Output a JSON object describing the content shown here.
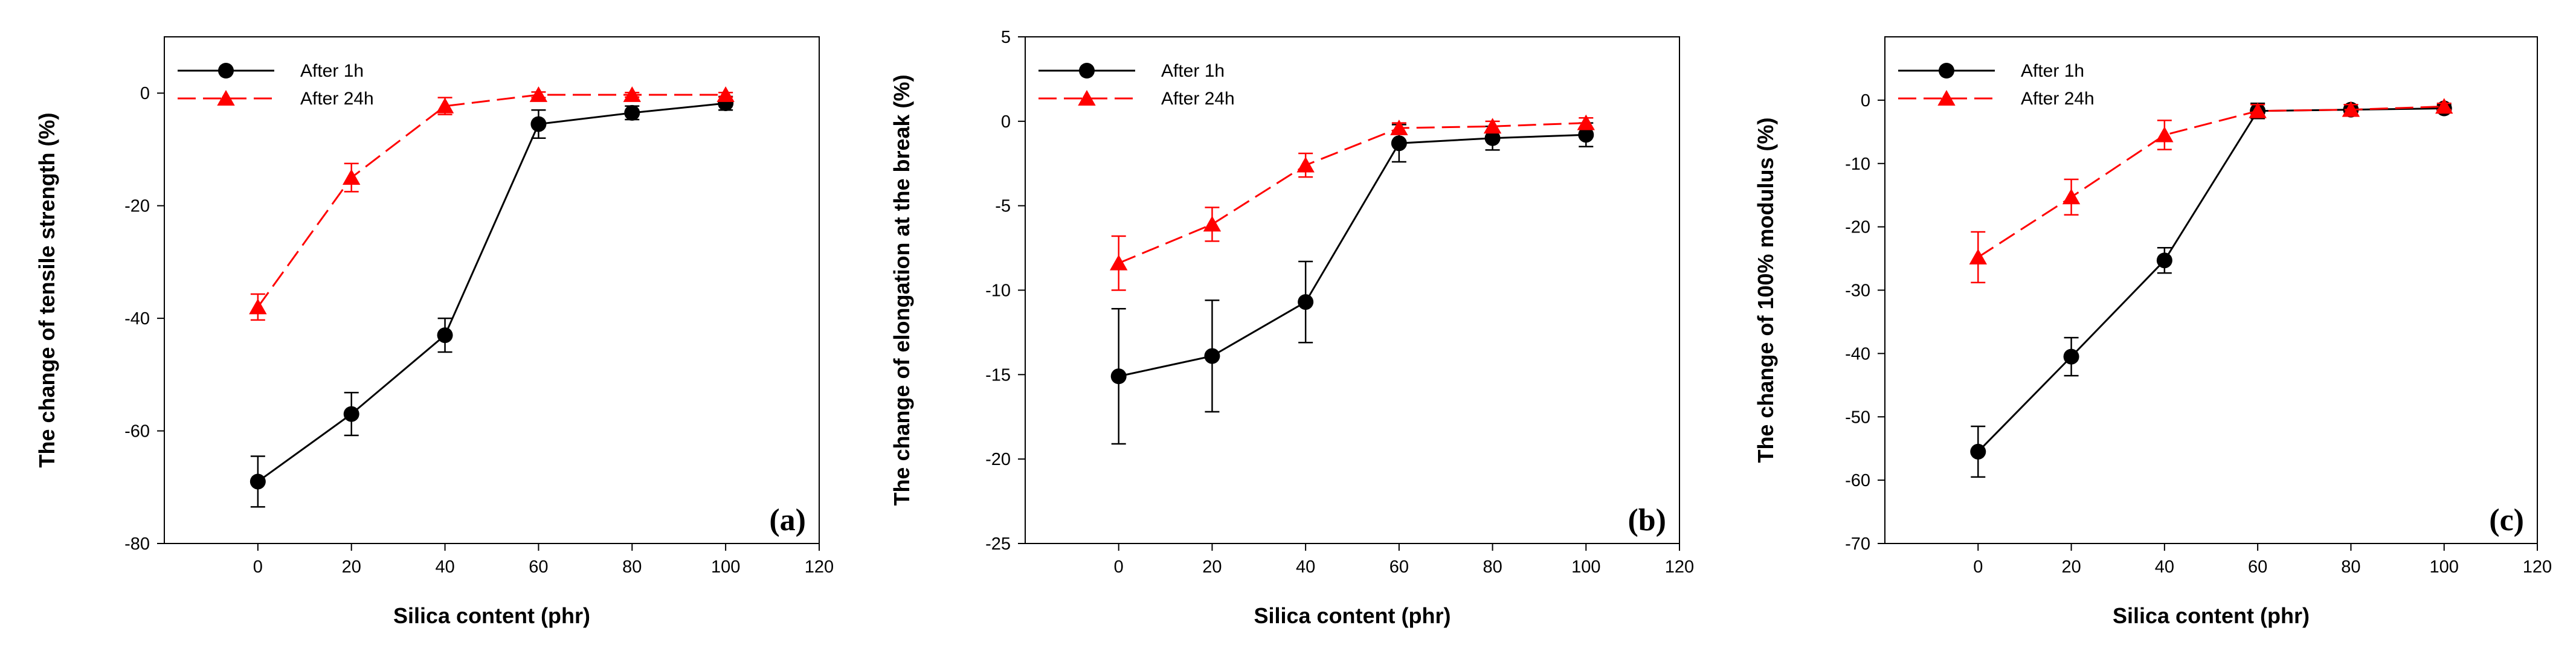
{
  "colors": {
    "after_1h": "#000000",
    "after_24h": "#ff0000"
  },
  "chart_data": [
    {
      "type": "line",
      "panel_label": "(a)",
      "xlabel": "Silica content (phr)",
      "ylabel": "The change of tensile strength (%)",
      "xlim": [
        -20,
        120
      ],
      "ylim": [
        -80,
        10
      ],
      "xticks": [
        0,
        20,
        40,
        60,
        80,
        100,
        120
      ],
      "yticks": [
        -80,
        -60,
        -40,
        -20,
        0
      ],
      "legend_position": "top-left",
      "x": [
        0,
        20,
        40,
        60,
        80,
        100
      ],
      "series": [
        {
          "name": "After 1h",
          "values": [
            -69,
            -57,
            -43,
            -5.5,
            -3.5,
            -1.8
          ],
          "errors": [
            4.5,
            3.8,
            3.0,
            2.5,
            1.2,
            1.2
          ]
        },
        {
          "name": "After 24h",
          "values": [
            -38,
            -15,
            -2.3,
            -0.3,
            -0.3,
            -0.3
          ],
          "errors": [
            2.3,
            2.5,
            1.5,
            0.5,
            0.4,
            0.4
          ]
        }
      ]
    },
    {
      "type": "line",
      "panel_label": "(b)",
      "xlabel": "Silica content (phr)",
      "ylabel": "The change of elongation at the break (%)",
      "xlim": [
        -20,
        120
      ],
      "ylim": [
        -25,
        5
      ],
      "xticks": [
        0,
        20,
        40,
        60,
        80,
        100,
        120
      ],
      "yticks": [
        -25,
        -20,
        -15,
        -10,
        -5,
        0,
        5
      ],
      "legend_position": "top-left",
      "x": [
        0,
        20,
        40,
        60,
        80,
        100
      ],
      "series": [
        {
          "name": "After 1h",
          "values": [
            -15.1,
            -13.9,
            -10.7,
            -1.3,
            -1.0,
            -0.8
          ],
          "errors": [
            4.0,
            3.3,
            2.4,
            1.1,
            0.7,
            0.7
          ]
        },
        {
          "name": "After 24h",
          "values": [
            -8.4,
            -6.1,
            -2.6,
            -0.4,
            -0.3,
            -0.1
          ],
          "errors": [
            1.6,
            1.0,
            0.7,
            0.3,
            0.3,
            0.3
          ]
        }
      ]
    },
    {
      "type": "line",
      "panel_label": "(c)",
      "xlabel": "Silica content (phr)",
      "ylabel": "The change of 100% modulus (%)",
      "xlim": [
        -20,
        120
      ],
      "ylim": [
        -70,
        10
      ],
      "xticks": [
        0,
        20,
        40,
        60,
        80,
        100,
        120
      ],
      "yticks": [
        -70,
        -60,
        -50,
        -40,
        -30,
        -20,
        -10,
        0
      ],
      "legend_position": "top-left",
      "x": [
        0,
        20,
        40,
        60,
        80,
        100
      ],
      "series": [
        {
          "name": "After 1h",
          "values": [
            -55.5,
            -40.5,
            -25.3,
            -1.7,
            -1.5,
            -1.3
          ],
          "errors": [
            4.0,
            3.0,
            2.0,
            1.2,
            0.8,
            0.6
          ]
        },
        {
          "name": "After 24h",
          "values": [
            -24.8,
            -15.3,
            -5.5,
            -1.7,
            -1.5,
            -1.0
          ],
          "errors": [
            4.0,
            2.8,
            2.3,
            1.0,
            0.8,
            0.5
          ]
        }
      ]
    }
  ]
}
